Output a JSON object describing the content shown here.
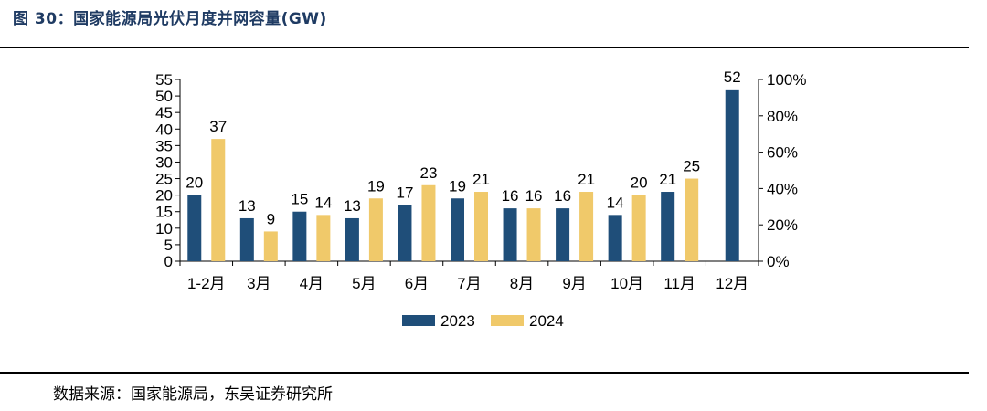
{
  "header": {
    "title": "图 30：国家能源局光伏月度并网容量(GW)"
  },
  "footer": {
    "source": "数据来源：国家能源局，东吴证券研究所"
  },
  "colors": {
    "series_2023": "#1f4e79",
    "series_2024": "#f0c96a",
    "rule": "#000000"
  },
  "chart_data": {
    "type": "bar",
    "title": "国家能源局光伏月度并网容量(GW)",
    "categories": [
      "1-2月",
      "3月",
      "4月",
      "5月",
      "6月",
      "7月",
      "8月",
      "9月",
      "10月",
      "11月",
      "12月"
    ],
    "series": [
      {
        "name": "2023",
        "values": [
          20,
          13,
          15,
          13,
          17,
          19,
          16,
          16,
          14,
          21,
          52
        ]
      },
      {
        "name": "2024",
        "values": [
          37,
          9,
          14,
          19,
          23,
          21,
          16,
          21,
          20,
          25,
          null
        ]
      }
    ],
    "y_ticks": [
      0,
      5,
      10,
      15,
      20,
      25,
      30,
      35,
      40,
      45,
      50,
      55
    ],
    "ylim": [
      0,
      55
    ],
    "y2_ticks": [
      "0%",
      "20%",
      "40%",
      "60%",
      "80%",
      "100%"
    ],
    "y2lim": [
      0,
      1
    ],
    "legend_position": "bottom",
    "grid": false
  }
}
